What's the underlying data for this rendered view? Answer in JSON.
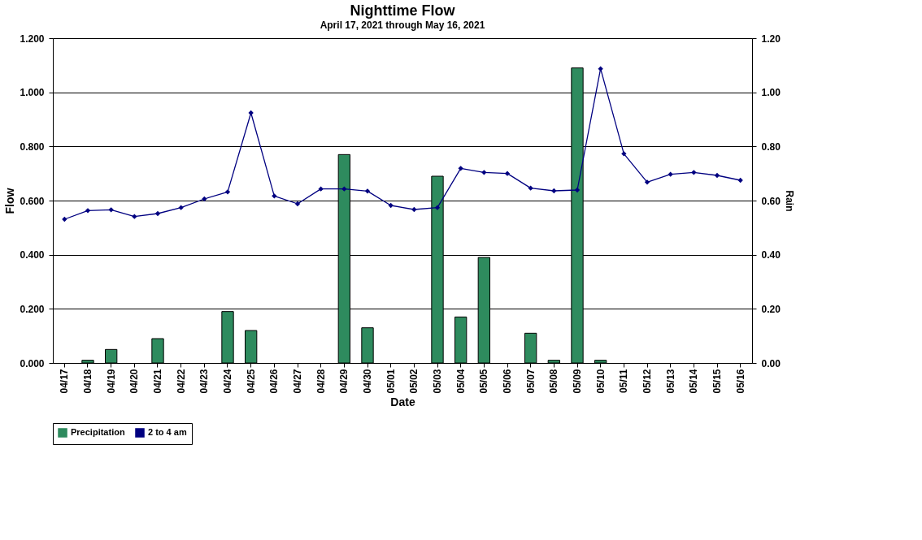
{
  "chart_data": {
    "type": "bar",
    "title": "Nighttime Flow",
    "subtitle": "April 17, 2021 through May 16, 2021",
    "xlabel": "Date",
    "ylabel": "Flow",
    "y2label": "Rain",
    "categories": [
      "04/17",
      "04/18",
      "04/19",
      "04/20",
      "04/21",
      "04/22",
      "04/23",
      "04/24",
      "04/25",
      "04/26",
      "04/27",
      "04/28",
      "04/29",
      "04/30",
      "05/01",
      "05/02",
      "05/03",
      "05/04",
      "05/05",
      "05/06",
      "05/07",
      "05/08",
      "05/09",
      "05/10",
      "05/11",
      "05/12",
      "05/13",
      "05/14",
      "05/15",
      "05/16"
    ],
    "series": [
      {
        "name": "Precipitation",
        "axis": "y2",
        "color": "#2e8b5e",
        "values": [
          0,
          0.01,
          0.05,
          0,
          0.09,
          0,
          0,
          0.19,
          0.12,
          0,
          0,
          0,
          0.77,
          0.13,
          0,
          0,
          0.69,
          0.17,
          0.39,
          0,
          0.11,
          0.01,
          1.09,
          0.01,
          0,
          0,
          0,
          0,
          0,
          0
        ]
      },
      {
        "name": "2 to 4 am",
        "type": "line",
        "color": "#000080",
        "marker": "diamond",
        "line_style": "solid",
        "values": [
          0.531,
          0.563,
          0.566,
          0.541,
          0.552,
          0.574,
          0.606,
          0.632,
          0.924,
          0.617,
          0.588,
          0.643,
          0.643,
          0.635,
          0.582,
          0.567,
          0.574,
          0.719,
          0.704,
          0.7,
          0.646,
          0.636,
          0.639,
          1.087,
          0.773,
          0.668,
          0.697,
          0.704,
          0.693,
          0.675
        ]
      }
    ],
    "ylim": [
      0,
      1.2
    ],
    "yticks": [
      {
        "value": 0,
        "label": "0.000"
      },
      {
        "value": 0.2,
        "label": "0.200"
      },
      {
        "value": 0.4,
        "label": "0.400"
      },
      {
        "value": 0.6,
        "label": "0.600"
      },
      {
        "value": 0.8,
        "label": "0.800"
      },
      {
        "value": 1.0,
        "label": "1.000"
      },
      {
        "value": 1.2,
        "label": "1.200"
      }
    ],
    "y2lim": [
      0,
      1.2
    ],
    "y2ticks": [
      {
        "value": 0,
        "label": "0.00"
      },
      {
        "value": 0.2,
        "label": "0.20"
      },
      {
        "value": 0.4,
        "label": "0.40"
      },
      {
        "value": 0.6,
        "label": "0.60"
      },
      {
        "value": 0.8,
        "label": "0.80"
      },
      {
        "value": 1.0,
        "label": "1.00"
      },
      {
        "value": 1.2,
        "label": "1.20"
      }
    ],
    "grid": "y",
    "legend": "bottom"
  }
}
